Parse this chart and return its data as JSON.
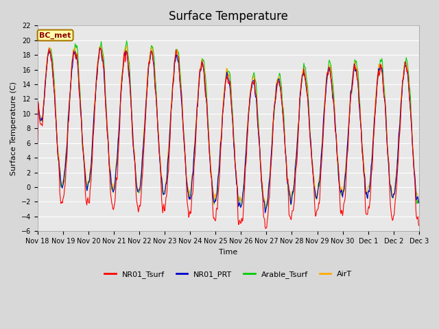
{
  "title": "Surface Temperature",
  "ylabel": "Surface Temperature (C)",
  "xlabel": "Time",
  "annotation": "BC_met",
  "ylim": [
    -6,
    22
  ],
  "fig_bg": "#d8d8d8",
  "ax_bg": "#e8e8e8",
  "grid_color": "white",
  "series": {
    "NR01_Tsurf": {
      "color": "#ff0000",
      "lw": 0.8
    },
    "NR01_PRT": {
      "color": "#0000cc",
      "lw": 0.8
    },
    "Arable_Tsurf": {
      "color": "#00cc00",
      "lw": 0.8
    },
    "AirT": {
      "color": "#ffaa00",
      "lw": 0.8
    }
  },
  "xtick_labels": [
    "Nov 18",
    "Nov 19",
    "Nov 20",
    "Nov 21",
    "Nov 22",
    "Nov 23",
    "Nov 24",
    "Nov 25",
    "Nov 26",
    "Nov 27",
    "Nov 28",
    "Nov 29",
    "Nov 30",
    "Dec 1",
    "Dec 2",
    "Dec 3"
  ],
  "yticks": [
    -6,
    -4,
    -2,
    0,
    2,
    4,
    6,
    8,
    10,
    12,
    14,
    16,
    18,
    20,
    22
  ],
  "title_fontsize": 12,
  "axis_label_fontsize": 8,
  "tick_fontsize": 7,
  "legend_fontsize": 8,
  "annotation_fontsize": 8
}
